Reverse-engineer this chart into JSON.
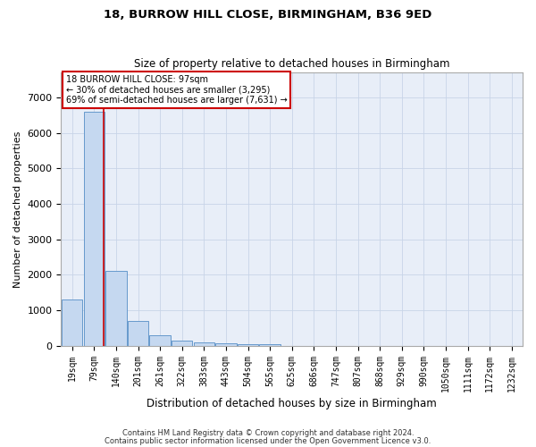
{
  "title": "18, BURROW HILL CLOSE, BIRMINGHAM, B36 9ED",
  "subtitle": "Size of property relative to detached houses in Birmingham",
  "xlabel": "Distribution of detached houses by size in Birmingham",
  "ylabel": "Number of detached properties",
  "property_label": "18 BURROW HILL CLOSE: 97sqm",
  "annotation_line1": "← 30% of detached houses are smaller (3,295)",
  "annotation_line2": "69% of semi-detached houses are larger (7,631) →",
  "footer_line1": "Contains HM Land Registry data © Crown copyright and database right 2024.",
  "footer_line2": "Contains public sector information licensed under the Open Government Licence v3.0.",
  "bin_labels": [
    "19sqm",
    "79sqm",
    "140sqm",
    "201sqm",
    "261sqm",
    "322sqm",
    "383sqm",
    "443sqm",
    "504sqm",
    "565sqm",
    "625sqm",
    "686sqm",
    "747sqm",
    "807sqm",
    "868sqm",
    "929sqm",
    "990sqm",
    "1050sqm",
    "1111sqm",
    "1172sqm",
    "1232sqm"
  ],
  "bar_values": [
    1300,
    6600,
    2100,
    700,
    300,
    150,
    100,
    70,
    55,
    55,
    0,
    0,
    0,
    0,
    0,
    0,
    0,
    0,
    0,
    0,
    0
  ],
  "bar_color": "#c5d8f0",
  "bar_edge_color": "#6699cc",
  "red_line_x": 1.45,
  "ylim": [
    0,
    7700
  ],
  "yticks": [
    0,
    1000,
    2000,
    3000,
    4000,
    5000,
    6000,
    7000
  ],
  "grid_color": "#c8d4e8",
  "background_color": "#e8eef8"
}
